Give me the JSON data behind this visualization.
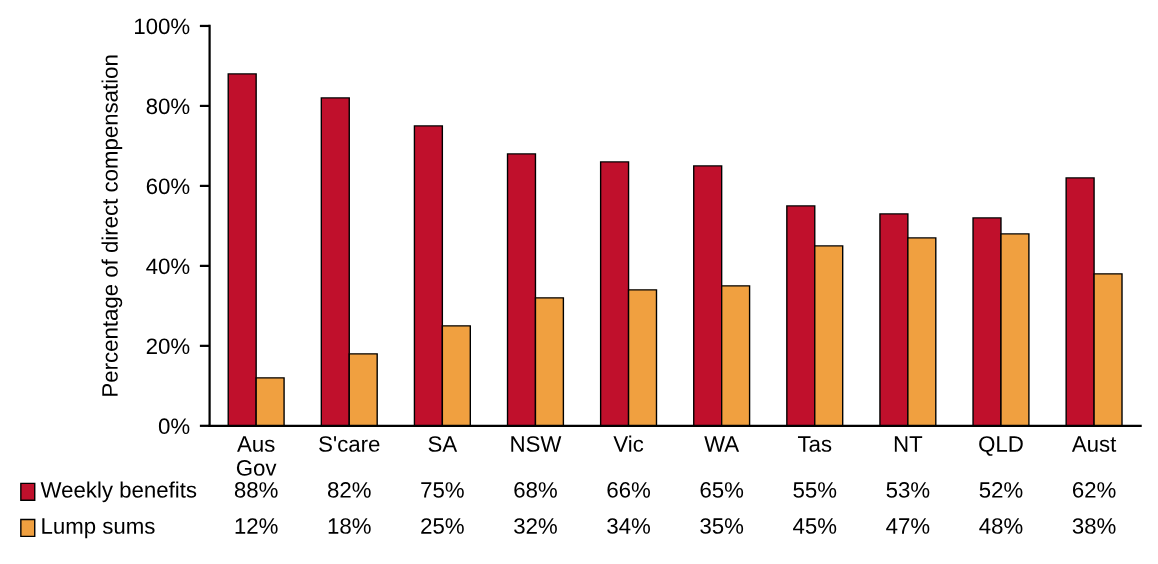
{
  "chart_data": {
    "type": "bar",
    "ylabel": "Percentage of direct compensation",
    "categories": [
      "Aus\nGov",
      "S'care",
      "SA",
      "NSW",
      "Vic",
      "WA",
      "Tas",
      "NT",
      "QLD",
      "Aust"
    ],
    "series": [
      {
        "name": "Weekly benefits",
        "color": "#c0102c",
        "values": [
          88,
          82,
          75,
          68,
          66,
          65,
          55,
          53,
          52,
          62
        ],
        "value_labels": [
          "88%",
          "82%",
          "75%",
          "68%",
          "66%",
          "65%",
          "55%",
          "53%",
          "52%",
          "62%"
        ]
      },
      {
        "name": "Lump sums",
        "color": "#f0a040",
        "values": [
          12,
          18,
          25,
          32,
          34,
          35,
          45,
          47,
          48,
          38
        ],
        "value_labels": [
          "12%",
          "18%",
          "25%",
          "32%",
          "34%",
          "35%",
          "45%",
          "47%",
          "48%",
          "38%"
        ]
      }
    ],
    "ylim": [
      0,
      100
    ],
    "yticks": [
      {
        "value": 0,
        "label": "0%"
      },
      {
        "value": 20,
        "label": "20%"
      },
      {
        "value": 40,
        "label": "40%"
      },
      {
        "value": 60,
        "label": "60%"
      },
      {
        "value": 80,
        "label": "80%"
      },
      {
        "value": 100,
        "label": "100%"
      }
    ],
    "grid": false,
    "legend": "bottom left"
  }
}
